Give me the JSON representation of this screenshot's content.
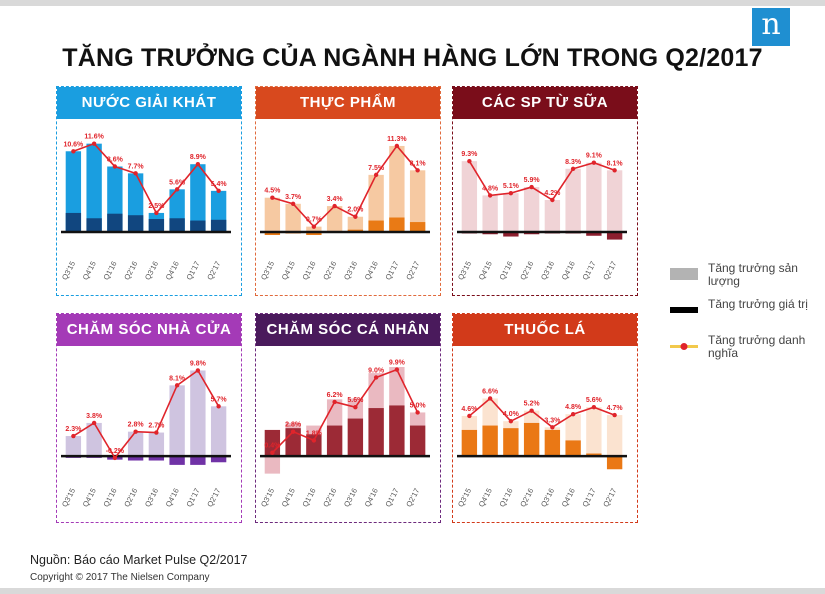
{
  "title": "TĂNG TRƯỞNG CỦA NGÀNH HÀNG LỚN TRONG Q2/2017",
  "logo_text": "n",
  "source": "Nguồn: Báo cáo Market Pulse Q2/2017",
  "copyright": "Copyright © 2017  The Nielsen Company",
  "legend": [
    {
      "label": "Tăng trưởng sản lượng",
      "color": "#b3b3b3",
      "icon": "bar-swatch"
    },
    {
      "label": "Tăng trưởng giá trị",
      "color": "#000000",
      "icon": "line-swatch"
    },
    {
      "label": "Tăng trưởng danh nghĩa",
      "color": "#f2c94c",
      "marker_color": "#e0242b",
      "icon": "marker-swatch"
    }
  ],
  "chart_data": [
    {
      "type": "bar",
      "title": "NƯỚC GIẢI KHÁT",
      "header_color": "#1a9ee0",
      "border_color": "#1a9ee0",
      "value_color": "#1a9ee0",
      "volume_color": "#11467f",
      "categories": [
        "Q3'15",
        "Q4'15",
        "Q1'16",
        "Q2'16",
        "Q3'16",
        "Q4'16",
        "Q1'17",
        "Q2'17"
      ],
      "series": [
        {
          "name": "Tăng trưởng danh nghĩa",
          "values": [
            10.6,
            11.6,
            8.6,
            7.7,
            2.5,
            5.6,
            8.9,
            5.4
          ]
        }
      ],
      "volume": [
        2.5,
        1.8,
        2.4,
        2.2,
        1.7,
        1.8,
        1.5,
        1.6
      ],
      "ylim": [
        -2.5,
        13
      ]
    },
    {
      "type": "bar",
      "title": "THỰC PHẨM",
      "header_color": "#d8491e",
      "border_color": "#e06a3c",
      "value_color": "#f6c9a2",
      "volume_color": "#e97a15",
      "categories": [
        "Q3'15",
        "Q4'15",
        "Q1'16",
        "Q2'16",
        "Q3'16",
        "Q4'16",
        "Q1'17",
        "Q2'17"
      ],
      "series": [
        {
          "name": "Tăng trưởng danh nghĩa",
          "values": [
            4.5,
            3.7,
            0.7,
            3.4,
            2.0,
            7.5,
            11.3,
            8.1
          ]
        }
      ],
      "volume": [
        -0.4,
        -0.2,
        -0.4,
        -0.1,
        0.3,
        1.5,
        1.9,
        1.3
      ],
      "ylim": [
        -2.5,
        13
      ]
    },
    {
      "type": "bar",
      "title": "CÁC SP TỪ SỮA",
      "header_color": "#7a0d1a",
      "border_color": "#7a0d1a",
      "value_color": "#f0d3d6",
      "volume_color": "#8c1e2e",
      "categories": [
        "Q3'15",
        "Q4'15",
        "Q1'16",
        "Q2'16",
        "Q3'16",
        "Q4'16",
        "Q1'17",
        "Q2'17"
      ],
      "series": [
        {
          "name": "Tăng trưởng danh nghĩa",
          "values": [
            9.3,
            4.8,
            5.1,
            5.9,
            4.2,
            8.3,
            9.1,
            8.1
          ]
        }
      ],
      "volume": [
        -0.2,
        -0.3,
        -0.6,
        -0.3,
        -0.2,
        -0.2,
        -0.5,
        -1.0
      ],
      "ylim": [
        -2.5,
        13
      ]
    },
    {
      "type": "bar",
      "title": "CHĂM SÓC NHÀ CỬA",
      "header_color": "#a43ab7",
      "border_color": "#a43ab7",
      "value_color": "#cfc4e0",
      "volume_color": "#7032a6",
      "categories": [
        "Q3'15",
        "Q4'15",
        "Q1'16",
        "Q2'16",
        "Q3'16",
        "Q4'16",
        "Q1'17",
        "Q2'17"
      ],
      "series": [
        {
          "name": "Tăng trưởng danh nghĩa",
          "values": [
            2.3,
            3.8,
            -0.2,
            2.8,
            2.7,
            8.1,
            9.8,
            5.7
          ]
        }
      ],
      "volume": [
        -0.2,
        -0.2,
        -0.4,
        -0.5,
        -0.5,
        -1.0,
        -1.0,
        -0.7
      ],
      "ylim": [
        -2.5,
        11
      ]
    },
    {
      "type": "bar",
      "title": "CHĂM SÓC CÁ NHÂN",
      "header_color": "#4a1a5c",
      "border_color": "#6d2b7d",
      "value_color": "#eab9c1",
      "volume_color": "#9c2a36",
      "categories": [
        "Q3'15",
        "Q4'15",
        "Q1'16",
        "Q2'16",
        "Q3'16",
        "Q4'16",
        "Q1'17",
        "Q2'17"
      ],
      "series": [
        {
          "name": "Tăng trưởng danh nghĩa",
          "values": [
            0.4,
            2.8,
            1.8,
            6.2,
            5.6,
            9.0,
            9.9,
            5.0
          ]
        }
      ],
      "volume": [
        3.0,
        3.2,
        2.5,
        3.5,
        4.3,
        5.5,
        5.8,
        3.5
      ],
      "value_total": [
        -2.0,
        3.8,
        3.5,
        6.5,
        6.6,
        9.5,
        10.2,
        5.0
      ],
      "ylim": [
        -2.5,
        11
      ]
    },
    {
      "type": "bar",
      "title": "THUỐC LÁ",
      "header_color": "#d23a1a",
      "border_color": "#d23a1a",
      "value_color": "#fbe3d0",
      "volume_color": "#ea7815",
      "categories": [
        "Q3'15",
        "Q4'15",
        "Q1'16",
        "Q2'16",
        "Q3'16",
        "Q4'16",
        "Q1'17",
        "Q2'17"
      ],
      "series": [
        {
          "name": "Tăng trưởng danh nghĩa",
          "values": [
            4.6,
            6.6,
            4.0,
            5.2,
            3.3,
            4.8,
            5.6,
            4.7
          ]
        }
      ],
      "volume": [
        3.0,
        3.5,
        3.2,
        3.8,
        3.0,
        1.8,
        0.3,
        -1.5
      ],
      "ylim": [
        -2.5,
        11
      ]
    }
  ]
}
